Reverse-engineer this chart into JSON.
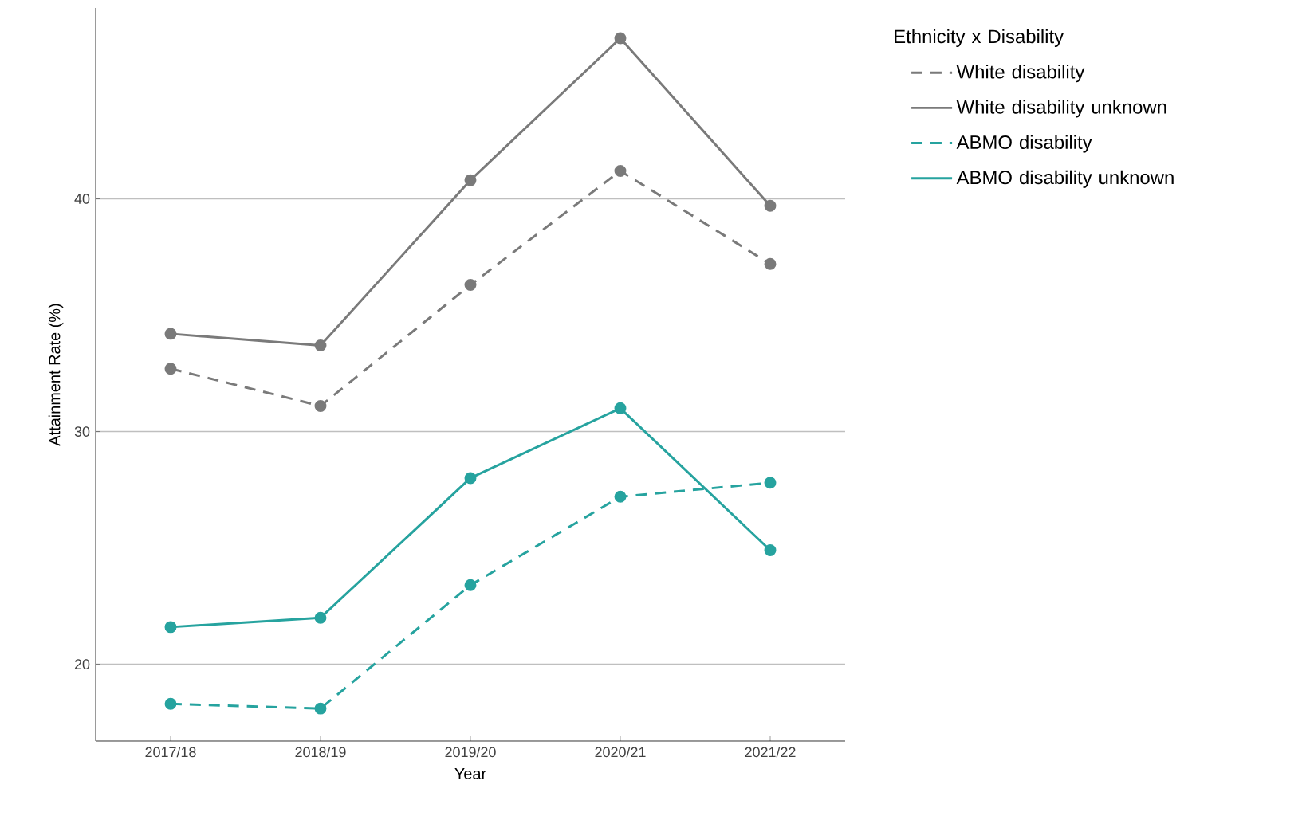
{
  "chart_data": {
    "type": "line",
    "xlabel": "Year",
    "ylabel": "Attainment Rate (%)",
    "legend_title": "Ethnicity x Disability",
    "categories": [
      "2017/18",
      "2018/19",
      "2019/20",
      "2020/21",
      "2021/22"
    ],
    "series": [
      {
        "name": "White disability",
        "color": "#7a7a7a",
        "line_style": "dashed",
        "values": [
          32.7,
          31.1,
          36.3,
          41.2,
          37.2
        ]
      },
      {
        "name": "White disability unknown",
        "color": "#7a7a7a",
        "line_style": "solid",
        "values": [
          34.2,
          33.7,
          40.8,
          46.9,
          39.7
        ]
      },
      {
        "name": "ABMO disability",
        "color": "#26a39f",
        "line_style": "dashed",
        "values": [
          18.3,
          18.1,
          23.4,
          27.2,
          27.8
        ]
      },
      {
        "name": "ABMO disability unknown",
        "color": "#26a39f",
        "line_style": "solid",
        "values": [
          21.6,
          22.0,
          28.0,
          31.0,
          24.9
        ]
      }
    ],
    "ylim": [
      16.7,
      48.2
    ],
    "yticks": [
      20,
      30,
      40
    ],
    "grid": "y",
    "legend": "right",
    "marker": "circle"
  }
}
